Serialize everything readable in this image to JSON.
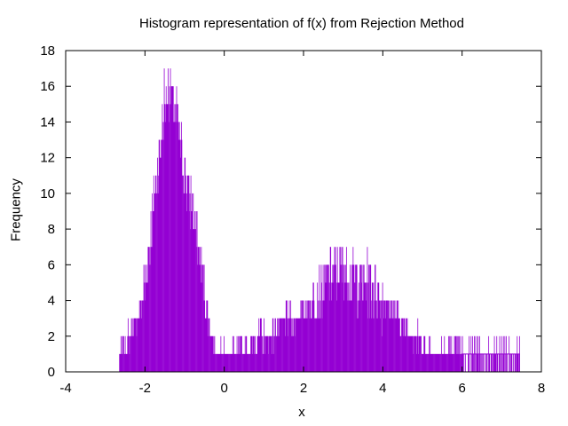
{
  "chart_data": {
    "type": "bar",
    "title": "Histogram representation of f(x) from Rejection Method",
    "xlabel": "x",
    "ylabel": "Frequency",
    "xlim": [
      -4,
      8
    ],
    "ylim": [
      0,
      18
    ],
    "xticks": [
      "-4",
      "-2",
      "0",
      "2",
      "4",
      "6",
      "8"
    ],
    "yticks": [
      "0",
      "2",
      "4",
      "6",
      "8",
      "10",
      "12",
      "14",
      "16",
      "18"
    ],
    "color": "#9400D3",
    "grid": false,
    "legend": "none",
    "bin_profile": {
      "x": [
        -2.65,
        -2.4,
        -2.2,
        -2.0,
        -1.8,
        -1.6,
        -1.5,
        -1.4,
        -1.3,
        -1.2,
        -1.0,
        -0.8,
        -0.6,
        -0.4,
        -0.2,
        0.0,
        0.5,
        0.9,
        1.2,
        1.5,
        1.8,
        2.2,
        2.6,
        3.0,
        3.3,
        3.6,
        4.0,
        4.4,
        4.8,
        5.2,
        5.6,
        6.0,
        6.4,
        6.8,
        7.2,
        7.45
      ],
      "y": [
        1,
        2,
        3,
        5,
        9,
        13,
        15,
        16,
        15,
        14,
        11,
        9,
        6,
        3,
        1,
        1,
        1,
        2,
        2,
        3,
        3,
        4,
        5,
        6,
        5,
        5,
        4,
        3,
        2,
        1,
        1,
        1,
        1,
        1,
        1,
        1
      ]
    }
  }
}
